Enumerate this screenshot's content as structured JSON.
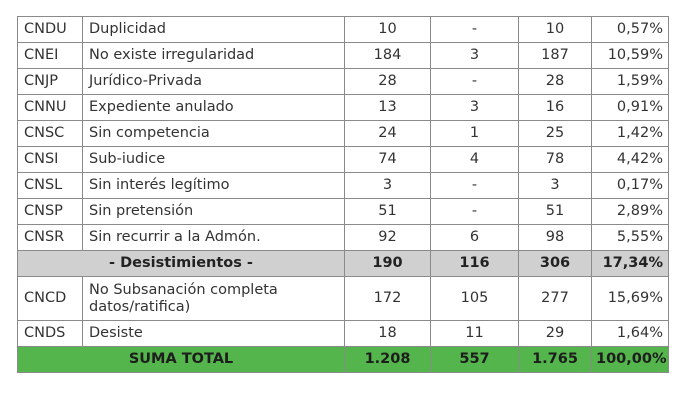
{
  "rows": [
    {
      "code": "CNDU",
      "desc": "Duplicidad",
      "a": "10",
      "b": "-",
      "total": "10",
      "pct": "0,57%"
    },
    {
      "code": "CNEI",
      "desc": "No existe irregularidad",
      "a": "184",
      "b": "3",
      "total": "187",
      "pct": "10,59%"
    },
    {
      "code": "CNJP",
      "desc": "Jurídico-Privada",
      "a": "28",
      "b": "-",
      "total": "28",
      "pct": "1,59%"
    },
    {
      "code": "CNNU",
      "desc": "Expediente anulado",
      "a": "13",
      "b": "3",
      "total": "16",
      "pct": "0,91%"
    },
    {
      "code": "CNSC",
      "desc": "Sin competencia",
      "a": "24",
      "b": "1",
      "total": "25",
      "pct": "1,42%"
    },
    {
      "code": "CNSI",
      "desc": "Sub-iudice",
      "a": "74",
      "b": "4",
      "total": "78",
      "pct": "4,42%"
    },
    {
      "code": "CNSL",
      "desc": "Sin interés legítimo",
      "a": "3",
      "b": "-",
      "total": "3",
      "pct": "0,17%"
    },
    {
      "code": "CNSP",
      "desc": "Sin pretensión",
      "a": "51",
      "b": "-",
      "total": "51",
      "pct": "2,89%"
    },
    {
      "code": "CNSR",
      "desc": "Sin recurrir a la Admón.",
      "a": "92",
      "b": "6",
      "total": "98",
      "pct": "5,55%"
    }
  ],
  "subtotal": {
    "label": "- Desistimientos -",
    "a": "190",
    "b": "116",
    "total": "306",
    "pct": "17,34%"
  },
  "rows2": [
    {
      "code": "CNCD",
      "desc": "No Subsanación completa datos/ratifica)",
      "a": "172",
      "b": "105",
      "total": "277",
      "pct": "15,69%"
    },
    {
      "code": "CNDS",
      "desc": "Desiste",
      "a": "18",
      "b": "11",
      "total": "29",
      "pct": "1,64%"
    }
  ],
  "total": {
    "label": "SUMA TOTAL",
    "a": "1.208",
    "b": "557",
    "total": "1.765",
    "pct": "100,00%"
  },
  "colors": {
    "subtotal_bg": "#d0d0d0",
    "total_bg": "#53b54b",
    "border": "#8a8a8a"
  }
}
